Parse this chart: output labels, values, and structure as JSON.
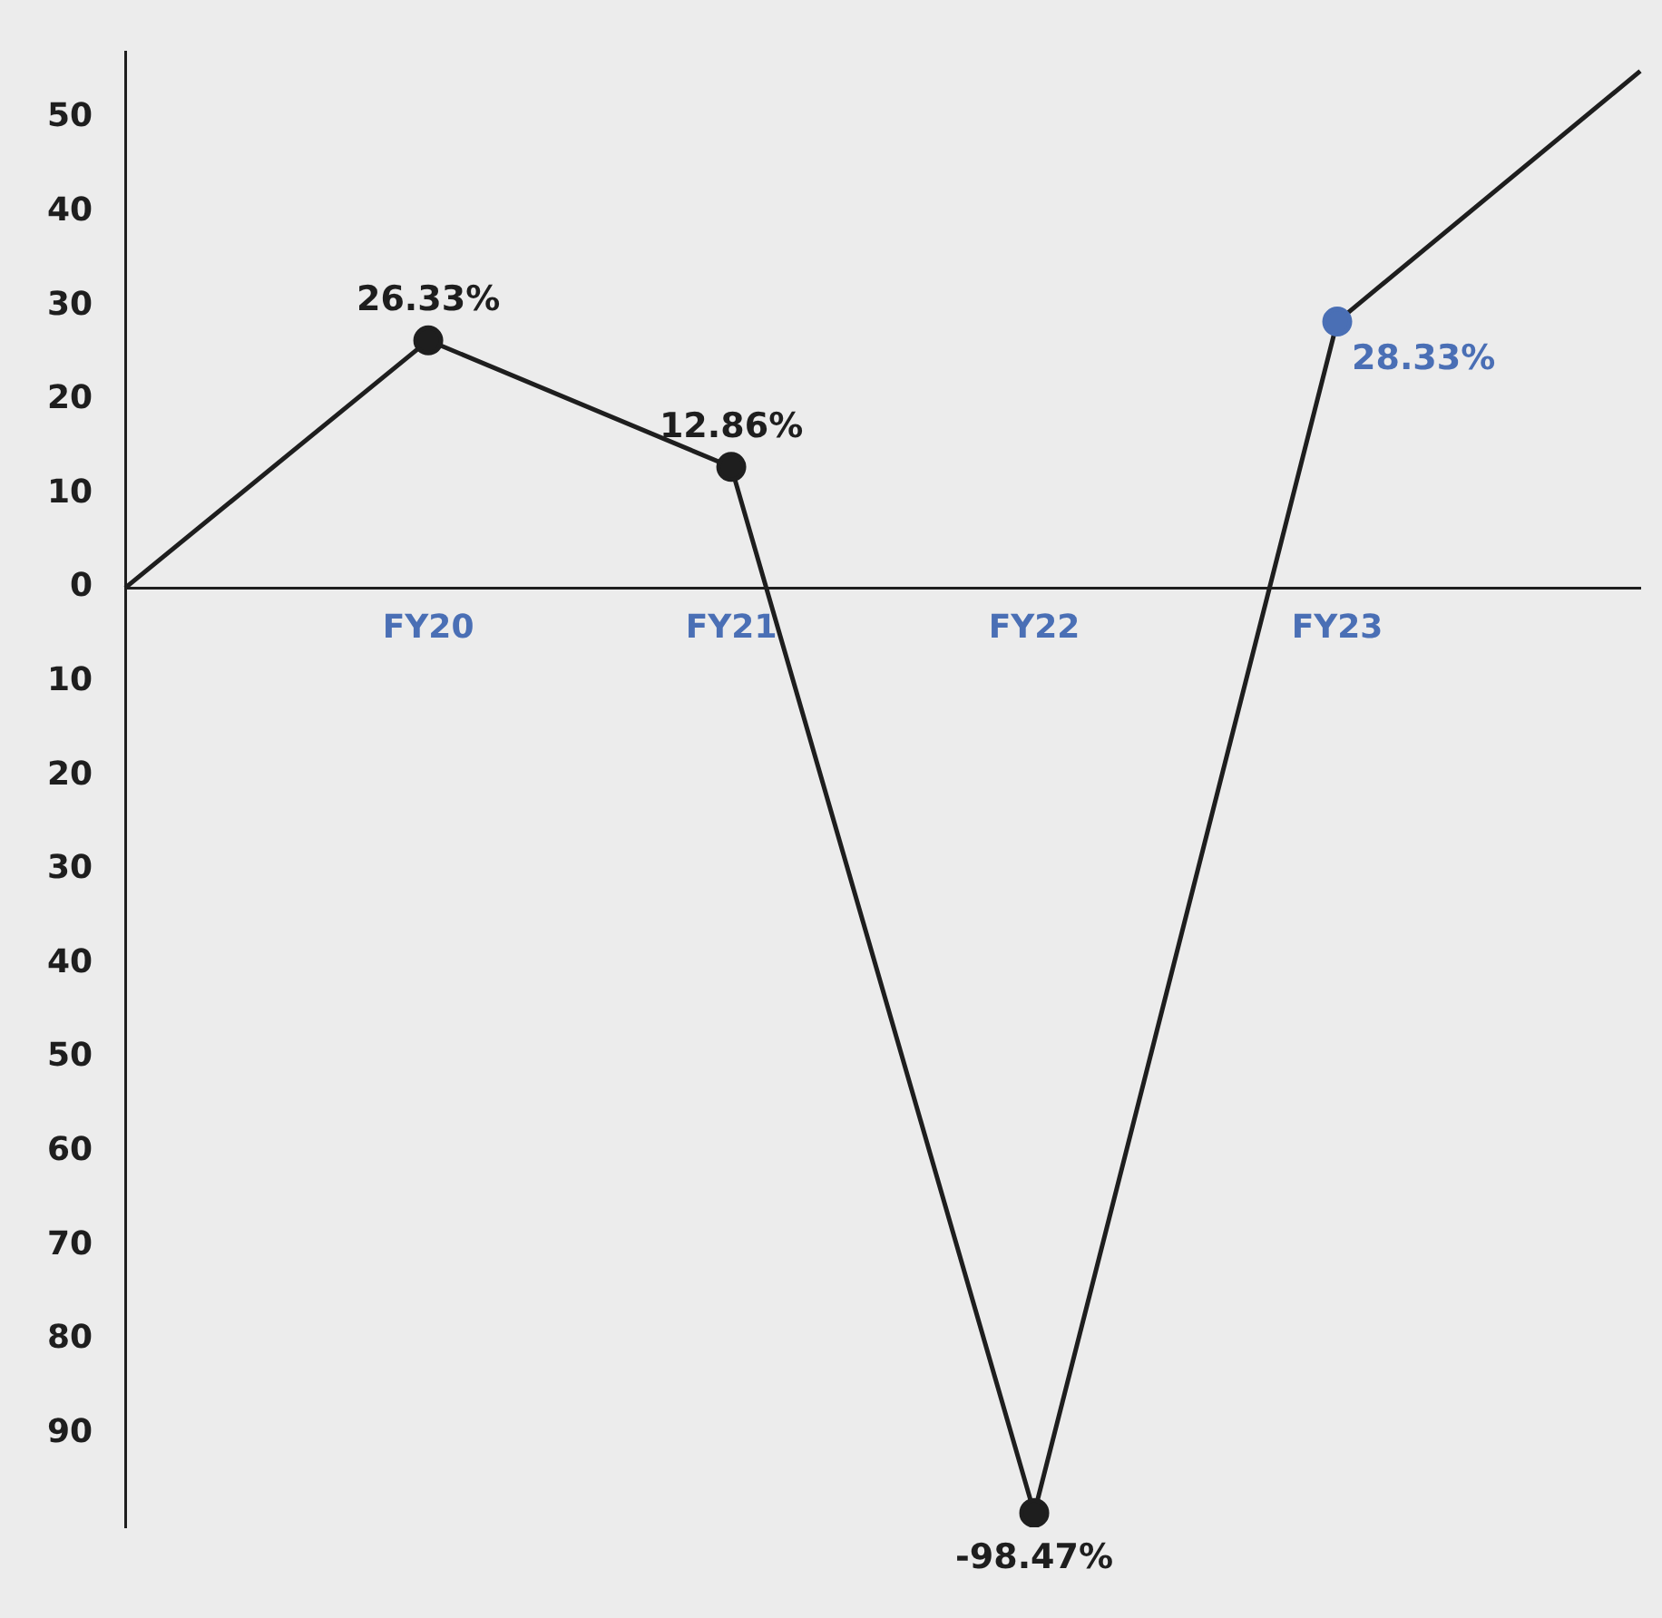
{
  "chart_data": {
    "type": "line",
    "categories": [
      null,
      "FY20",
      "FY21",
      "FY22",
      "FY23",
      null
    ],
    "series": [
      {
        "color": "#1e1e1e",
        "colors": [
          "#1e1e1e",
          "#1e1e1e",
          "#1e1e1e",
          "#1e1e1e",
          "#4a6fb5",
          "#1e1e1e"
        ],
        "values": [
          0,
          26.33,
          12.86,
          -98.47,
          28.33,
          55
        ],
        "value_labels": [
          null,
          "26.33%",
          "12.86%",
          "-98.47%",
          "28.33%",
          null
        ]
      }
    ],
    "ylim": [
      -100,
      57
    ],
    "yticks": [
      50,
      40,
      30,
      20,
      10,
      0,
      {
        "value": -10,
        "label": "10"
      },
      {
        "value": -20,
        "label": "20"
      },
      {
        "value": -30,
        "label": "30"
      },
      {
        "value": -40,
        "label": "40"
      },
      {
        "value": -50,
        "label": "50"
      },
      {
        "value": -60,
        "label": "60"
      },
      {
        "value": -70,
        "label": "70"
      },
      {
        "value": -80,
        "label": "80"
      },
      {
        "value": -90,
        "label": "90"
      }
    ],
    "grid": false,
    "legend": false,
    "marker": "circle"
  }
}
